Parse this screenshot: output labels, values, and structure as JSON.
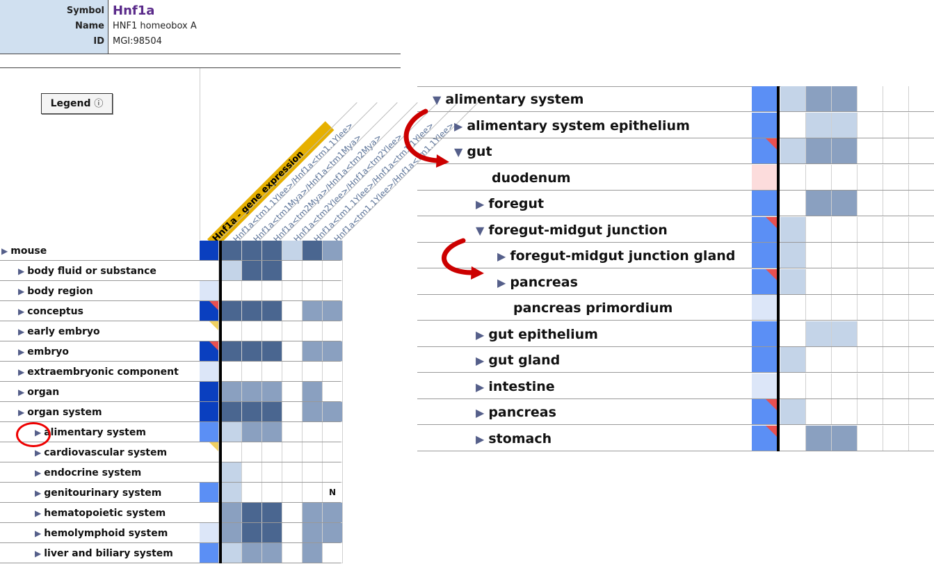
{
  "gene": {
    "symbol_label": "Symbol",
    "symbol": "Hnf1a",
    "name_label": "Name",
    "name": "HNF1 homeobox A",
    "id_label": "ID",
    "id": "MGI:98504"
  },
  "legend_button": {
    "label": "Legend",
    "icon": "info-icon",
    "glyph": "ⓘ"
  },
  "column_headers": [
    "Hnf1a - gene expression",
    "Hnf1a<tm1.1Ylee>/Hnf1a<tm1.1Ylee>",
    "Hnf1a<tm1Mya>/Hnf1a<tm1Mya>",
    "Hnf1a<tm2Mya>/Hnf1a<tm2Mya>",
    "Hnf1a<tm2Ylee>/Hnf1a<tm2Ylee>",
    "Hnf1a<tm1.1Ylee>/Hnf1a<tm1.1Ylee>",
    "Hnf1a<tm1.1Ylee>/Hnf1a<tm1.1Ylee>"
  ],
  "colors": {
    "expr_strong": "#0a3fbf",
    "expr_mid": "#5b8ff5",
    "expr_light": "#dce6f8",
    "expr_pink": "#fcdcdc",
    "pheno_dark": "#4a6690",
    "pheno_mid": "#8aa0c0",
    "pheno_light": "#c4d4e8",
    "corner_red": "#e85050",
    "corner_yellow": "#f0d060",
    "empty": "#ffffff"
  },
  "anatomy_tree": [
    {
      "label": "mouse",
      "indent": 0,
      "expand": "▶",
      "cells": [
        "S",
        "D",
        "D",
        "D",
        "L",
        "D",
        "M"
      ]
    },
    {
      "label": "body fluid or substance",
      "indent": 1,
      "expand": "▶",
      "cells": [
        "",
        "L",
        "D",
        "D",
        "",
        "",
        ""
      ]
    },
    {
      "label": "body region",
      "indent": 1,
      "expand": "▶",
      "cells": [
        "e",
        "",
        "",
        "",
        "",
        "",
        ""
      ]
    },
    {
      "label": "conceptus",
      "indent": 1,
      "expand": "▶",
      "cells": [
        "S*",
        "D",
        "D",
        "D",
        "",
        "M",
        "M"
      ]
    },
    {
      "label": "early embryo",
      "indent": 1,
      "expand": "▶",
      "cells": [
        "y",
        "",
        "",
        "",
        "",
        "",
        ""
      ]
    },
    {
      "label": "embryo",
      "indent": 1,
      "expand": "▶",
      "cells": [
        "S*",
        "D",
        "D",
        "D",
        "",
        "M",
        "M"
      ]
    },
    {
      "label": "extraembryonic component",
      "indent": 1,
      "expand": "▶",
      "cells": [
        "e",
        "",
        "",
        "",
        "",
        "",
        ""
      ]
    },
    {
      "label": "organ",
      "indent": 1,
      "expand": "▶",
      "cells": [
        "S",
        "M",
        "M",
        "M",
        "",
        "M",
        ""
      ]
    },
    {
      "label": "organ system",
      "indent": 1,
      "expand": "▶",
      "cells": [
        "S",
        "D",
        "D",
        "D",
        "",
        "M",
        "M"
      ]
    },
    {
      "label": "alimentary system",
      "indent": 2,
      "expand": "▶",
      "cells": [
        "m",
        "L",
        "M",
        "M",
        "",
        "",
        ""
      ]
    },
    {
      "label": "cardiovascular system",
      "indent": 2,
      "expand": "▶",
      "cells": [
        "y",
        "",
        "",
        "",
        "",
        "",
        ""
      ]
    },
    {
      "label": "endocrine system",
      "indent": 2,
      "expand": "▶",
      "cells": [
        "",
        "L",
        "",
        "",
        "",
        "",
        ""
      ]
    },
    {
      "label": "genitourinary system",
      "indent": 2,
      "expand": "▶",
      "cells": [
        "m",
        "L",
        "",
        "",
        "",
        "",
        "N"
      ]
    },
    {
      "label": "hematopoietic system",
      "indent": 2,
      "expand": "▶",
      "cells": [
        "",
        "M",
        "D",
        "D",
        "",
        "M",
        "M"
      ]
    },
    {
      "label": "hemolymphoid system",
      "indent": 2,
      "expand": "▶",
      "cells": [
        "e",
        "M",
        "D",
        "D",
        "",
        "M",
        "M"
      ]
    },
    {
      "label": "liver and biliary system",
      "indent": 2,
      "expand": "▶",
      "cells": [
        "m",
        "L",
        "M",
        "M",
        "",
        "M",
        ""
      ]
    }
  ],
  "detail_tree": [
    {
      "label": "alimentary system",
      "indent": 0,
      "expand": "▼",
      "cells": [
        "m",
        "L",
        "M",
        "M",
        "",
        "",
        ""
      ]
    },
    {
      "label": "alimentary system epithelium",
      "indent": 1,
      "expand": "▶",
      "cells": [
        "m",
        "",
        "L",
        "L",
        "",
        "",
        ""
      ]
    },
    {
      "label": "gut",
      "indent": 1,
      "expand": "▼",
      "cells": [
        "m*",
        "L",
        "M",
        "M",
        "",
        "",
        ""
      ]
    },
    {
      "label": "duodenum",
      "indent": 2,
      "expand": "",
      "cells": [
        "p",
        "",
        "",
        "",
        "",
        "",
        ""
      ]
    },
    {
      "label": "foregut",
      "indent": 2,
      "expand": "▶",
      "cells": [
        "m",
        "",
        "M",
        "M",
        "",
        "",
        ""
      ]
    },
    {
      "label": "foregut-midgut junction",
      "indent": 2,
      "expand": "▼",
      "cells": [
        "m*",
        "L",
        "",
        "",
        "",
        "",
        ""
      ]
    },
    {
      "label": "foregut-midgut junction gland",
      "indent": 3,
      "expand": "▶",
      "cells": [
        "m",
        "L",
        "",
        "",
        "",
        "",
        ""
      ]
    },
    {
      "label": "pancreas",
      "indent": 3,
      "expand": "▶",
      "cells": [
        "m*",
        "L",
        "",
        "",
        "",
        "",
        ""
      ]
    },
    {
      "label": "pancreas primordium",
      "indent": 3,
      "expand": "",
      "cells": [
        "e",
        "",
        "",
        "",
        "",
        "",
        ""
      ]
    },
    {
      "label": "gut epithelium",
      "indent": 2,
      "expand": "▶",
      "cells": [
        "m",
        "",
        "L",
        "L",
        "",
        "",
        ""
      ]
    },
    {
      "label": "gut gland",
      "indent": 2,
      "expand": "▶",
      "cells": [
        "m",
        "L",
        "",
        "",
        "",
        "",
        ""
      ]
    },
    {
      "label": "intestine",
      "indent": 2,
      "expand": "▶",
      "cells": [
        "e",
        "",
        "",
        "",
        "",
        "",
        ""
      ]
    },
    {
      "label": "pancreas",
      "indent": 2,
      "expand": "▶",
      "cells": [
        "m*",
        "L",
        "",
        "",
        "",
        "",
        ""
      ]
    },
    {
      "label": "stomach",
      "indent": 2,
      "expand": "▶",
      "cells": [
        "m*",
        "",
        "M",
        "M",
        "",
        "",
        ""
      ]
    }
  ]
}
